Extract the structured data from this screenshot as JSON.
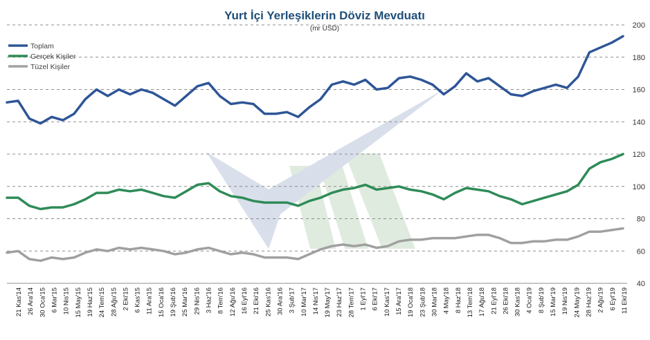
{
  "chart_data": {
    "type": "line",
    "title": "Yurt İçi Yerleşiklerin  Döviz Mevduatı",
    "subtitle": "(mr USD)",
    "ylim": [
      40,
      200
    ],
    "yticks": [
      40,
      60,
      80,
      100,
      120,
      140,
      160,
      180,
      200
    ],
    "grid": "horizontal-dashed",
    "legend_position": "top-left",
    "x_tick_labels": [
      "21 Kas'14",
      "26 Ara'14",
      "30 Oca'15",
      "6 Mar'15",
      "10 Nis'15",
      "15 May'15",
      "19 Haz'15",
      "24 Tem'15",
      "28 Ağu'15",
      "2 Eki'15",
      "6 Kas'15",
      "11 Ara'15",
      "15 Oca'16",
      "19 Şub'16",
      "25 Mar'16",
      "29 Nis'16",
      "3 Haz'16",
      "8 Tem'16",
      "12 Ağu'16",
      "16 Eyl'16",
      "21 Eki'16",
      "25 Kas'16",
      "30 Ara'16",
      "3 Şub'17",
      "10 Mar'17",
      "14 Nis'17",
      "19 May'17",
      "23 Haz'17",
      "28 Tem'17",
      "1 Eyl'17",
      "6 Eki'17",
      "10 Kas'17",
      "15 Ara'17",
      "19 Oca'18",
      "23 Şub'18",
      "30 Mar'18",
      "4 May'18",
      "8 Haz'18",
      "13 Tem'18",
      "17 Ağu'18",
      "21 Eyl'18",
      "26 Eki'18",
      "30 Kas'18",
      "4 Oca'19",
      "8 Şub'19",
      "15 Mar'19",
      "19 Nis'19",
      "24 May'19",
      "28 Haz'19",
      "2 Ağu'19",
      "6 Eyl'19",
      "11 Eki'19"
    ],
    "series": [
      {
        "name": "Toplam",
        "color": "#2E5597",
        "values": [
          152,
          153,
          142,
          139,
          143,
          141,
          145,
          154,
          160,
          156,
          160,
          157,
          160,
          158,
          154,
          150,
          156,
          162,
          164,
          156,
          151,
          152,
          151,
          145,
          145,
          146,
          143,
          149,
          154,
          163,
          165,
          163,
          166,
          160,
          161,
          167,
          168,
          166,
          163,
          157,
          162,
          170,
          165,
          167,
          162,
          157,
          156,
          159,
          161,
          163,
          161,
          168,
          183,
          186,
          189,
          193
        ]
      },
      {
        "name": "Gerçek Kişiler",
        "color": "#2E8B57",
        "values": [
          93,
          93,
          88,
          86,
          87,
          87,
          89,
          92,
          96,
          96,
          98,
          97,
          98,
          96,
          94,
          93,
          97,
          101,
          102,
          97,
          94,
          93,
          91,
          90,
          90,
          90,
          88,
          91,
          93,
          96,
          98,
          99,
          101,
          98,
          99,
          100,
          98,
          97,
          95,
          92,
          96,
          99,
          98,
          97,
          94,
          92,
          89,
          91,
          93,
          95,
          97,
          101,
          111,
          115,
          117,
          120
        ]
      },
      {
        "name": "Tüzel Kişiler",
        "color": "#A0A0A0",
        "values": [
          59,
          60,
          55,
          54,
          56,
          55,
          56,
          59,
          61,
          60,
          62,
          61,
          62,
          61,
          60,
          58,
          59,
          61,
          62,
          60,
          58,
          59,
          58,
          56,
          56,
          56,
          55,
          58,
          61,
          63,
          64,
          63,
          64,
          62,
          63,
          66,
          67,
          67,
          68,
          68,
          68,
          69,
          70,
          70,
          68,
          65,
          65,
          66,
          66,
          67,
          67,
          69,
          72,
          72,
          73,
          74
        ]
      }
    ]
  }
}
